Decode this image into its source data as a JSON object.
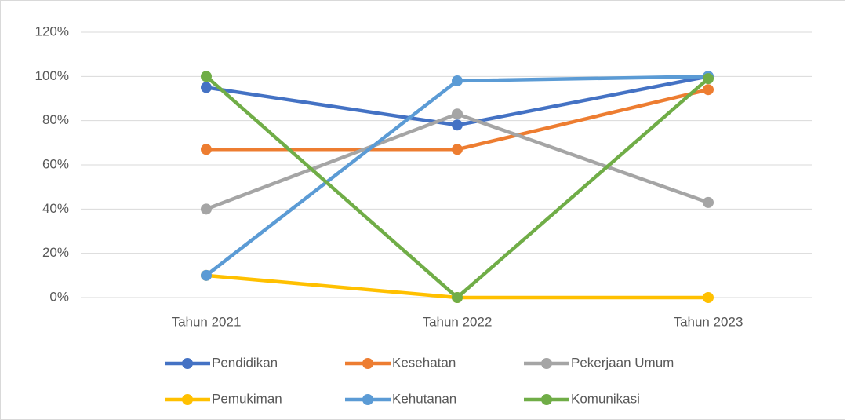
{
  "chart_data": {
    "type": "line",
    "categories": [
      "Tahun 2021",
      "Tahun 2022",
      "Tahun 2023"
    ],
    "series": [
      {
        "name": "Pendidikan",
        "color": "#4472c4",
        "values": [
          95,
          78,
          100
        ]
      },
      {
        "name": "Kesehatan",
        "color": "#ed7d31",
        "values": [
          67,
          67,
          94
        ]
      },
      {
        "name": "Pekerjaan Umum",
        "color": "#a5a5a5",
        "values": [
          40,
          83,
          43
        ]
      },
      {
        "name": "Pemukiman",
        "color": "#ffc000",
        "values": [
          10,
          0,
          0
        ]
      },
      {
        "name": "Kehutanan",
        "color": "#5b9bd5",
        "values": [
          10,
          98,
          100
        ]
      },
      {
        "name": "Komunikasi",
        "color": "#70ad47",
        "values": [
          100,
          0,
          99
        ]
      }
    ],
    "ylim": [
      0,
      120
    ],
    "yticks": [
      {
        "value": 0,
        "label": "0%"
      },
      {
        "value": 20,
        "label": "20%"
      },
      {
        "value": 40,
        "label": "40%"
      },
      {
        "value": 60,
        "label": "60%"
      },
      {
        "value": 80,
        "label": "80%"
      },
      {
        "value": 100,
        "label": "100%"
      },
      {
        "value": 120,
        "label": "120%"
      }
    ],
    "grid": true,
    "legend": "bottom"
  }
}
